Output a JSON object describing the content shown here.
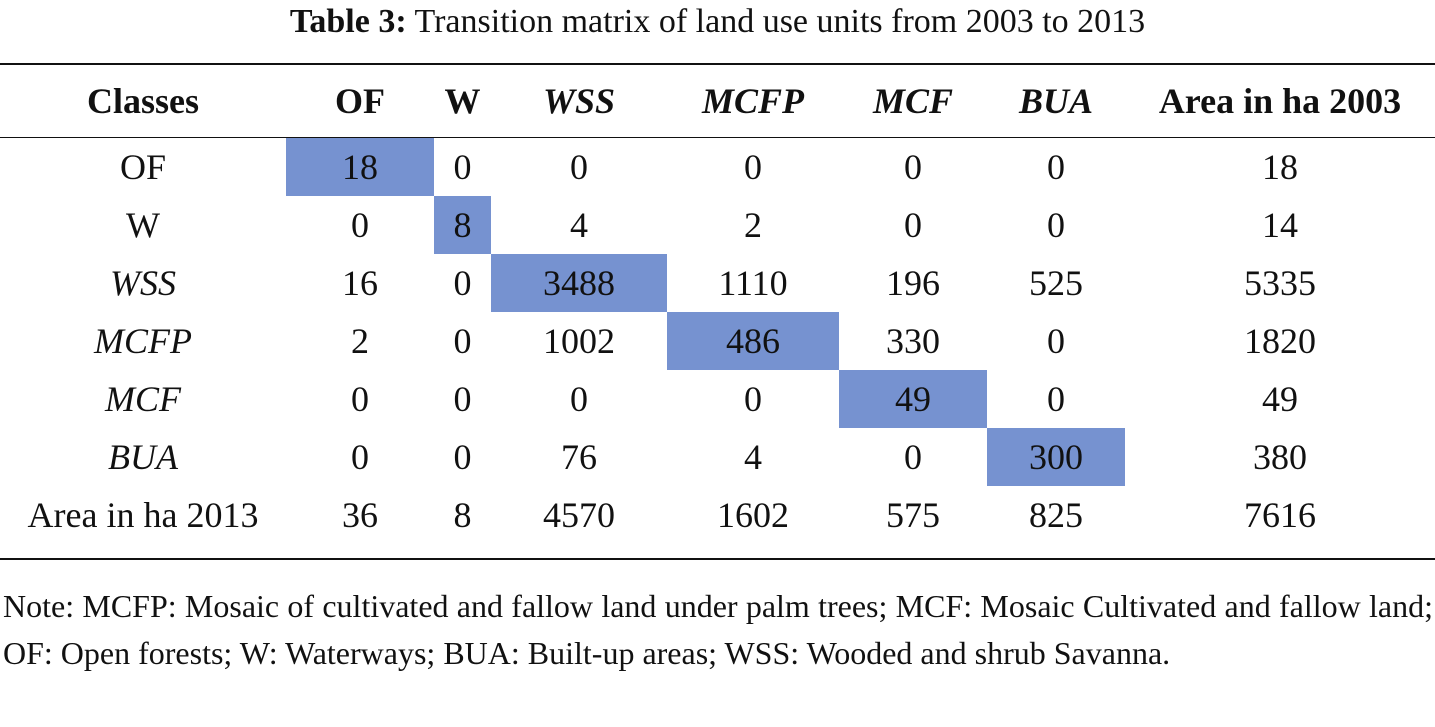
{
  "caption": {
    "label": "Table 3:",
    "text": "Transition matrix of land use units from 2003 to 2013"
  },
  "table": {
    "corner": "Classes",
    "columns": [
      {
        "label": "OF",
        "italic": false
      },
      {
        "label": "W",
        "italic": false
      },
      {
        "label": "WSS",
        "italic": true
      },
      {
        "label": "MCFP",
        "italic": true
      },
      {
        "label": "MCF",
        "italic": true
      },
      {
        "label": "BUA",
        "italic": true
      },
      {
        "label": "Area in ha 2003",
        "italic": false
      }
    ],
    "rows": [
      {
        "label": "OF",
        "italic": false,
        "values": [
          "18",
          "0",
          "0",
          "0",
          "0",
          "0",
          "18"
        ]
      },
      {
        "label": "W",
        "italic": false,
        "values": [
          "0",
          "8",
          "4",
          "2",
          "0",
          "0",
          "14"
        ]
      },
      {
        "label": "WSS",
        "italic": true,
        "values": [
          "16",
          "0",
          "3488",
          "1110",
          "196",
          "525",
          "5335"
        ]
      },
      {
        "label": "MCFP",
        "italic": true,
        "values": [
          "2",
          "0",
          "1002",
          "486",
          "330",
          "0",
          "1820"
        ]
      },
      {
        "label": "MCF",
        "italic": true,
        "values": [
          "0",
          "0",
          "0",
          "0",
          "49",
          "0",
          "49"
        ]
      },
      {
        "label": "BUA",
        "italic": true,
        "values": [
          "0",
          "0",
          "76",
          "4",
          "0",
          "300",
          "380"
        ]
      },
      {
        "label": "Area in ha 2013",
        "italic": false,
        "values": [
          "36",
          "8",
          "4570",
          "1602",
          "575",
          "825",
          "7616"
        ]
      }
    ],
    "highlight_color": "#7692d0"
  },
  "note": "Note: MCFP: Mosaic of cultivated and fallow land under palm trees; MCF: Mosaic Cultivated and fallow land; OF: Open forests; W: Waterways; BUA: Built-up areas; WSS: Wooded and shrub Savanna."
}
